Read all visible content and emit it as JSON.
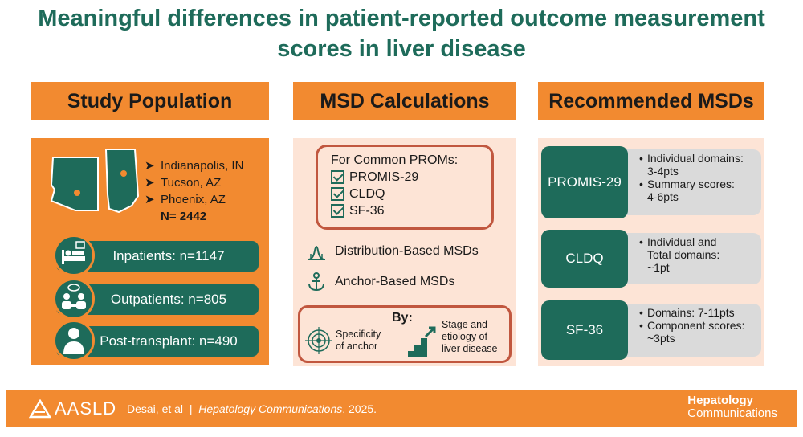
{
  "title": {
    "line1": "Meaningful differences in patient-reported outcome measurement",
    "line2": "scores in liver disease"
  },
  "columns": {
    "population": "Study Population",
    "calculations": "MSD Calculations",
    "recommended": "Recommended MSDs"
  },
  "population": {
    "cities": [
      "Indianapolis, IN",
      "Tucson, AZ",
      "Phoenix, AZ"
    ],
    "total": "N= 2442",
    "groups": [
      {
        "label": "Inpatients: n=1147",
        "icon": "hospital-bed-icon"
      },
      {
        "label": "Outpatients: n=805",
        "icon": "consultation-icon"
      },
      {
        "label": "Post-transplant: n=490",
        "icon": "person-icon"
      }
    ]
  },
  "calculations": {
    "common_heading": "For Common PROMs:",
    "proms": [
      "PROMIS-29",
      "CLDQ",
      "SF-36"
    ],
    "distribution": "Distribution-Based MSDs",
    "anchor": "Anchor-Based MSDs",
    "by_label": "By:",
    "by_specificity": [
      "Specificity",
      "of anchor"
    ],
    "by_stage": [
      "Stage and",
      "etiology of",
      "liver disease"
    ]
  },
  "recommended": [
    {
      "name": "PROMIS-29",
      "points": [
        "Individual domains:",
        "3-4pts",
        "Summary scores:",
        "4-6pts"
      ]
    },
    {
      "name": "CLDQ",
      "points": [
        "Individual and",
        "Total domains:",
        "~1pt"
      ]
    },
    {
      "name": "SF-36",
      "points": [
        "Domains: 7-11pts",
        "Component scores:",
        "~3pts"
      ]
    }
  ],
  "footer": {
    "logo": "AASLD",
    "authors": "Desai, et al",
    "separator": "|",
    "journal_italic": "Hepatology Communications",
    "year": ". 2025.",
    "journal_line1": "Hepatology",
    "journal_line2": "Communications"
  },
  "colors": {
    "orange": "#f28a30",
    "teal": "#1e6b5a",
    "peach": "#fde4d6",
    "red_border": "#c1573f",
    "grey": "#dadada"
  }
}
